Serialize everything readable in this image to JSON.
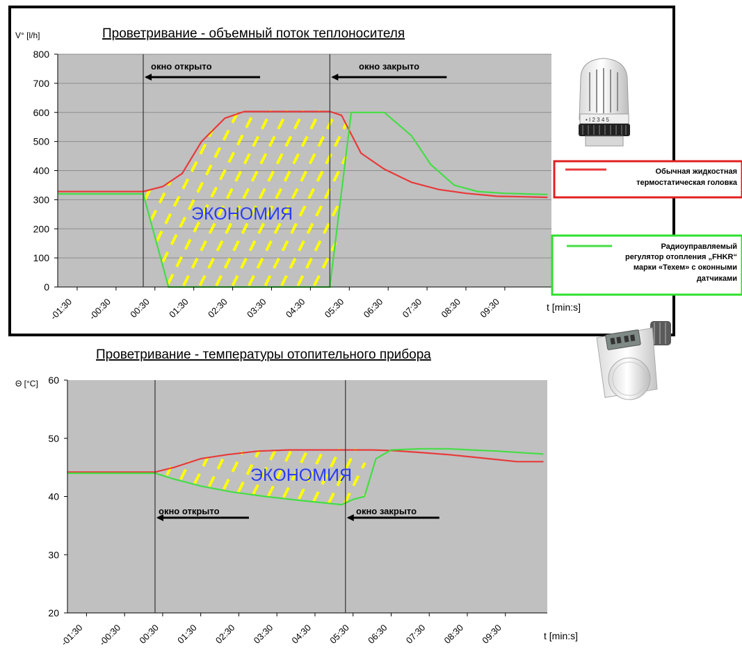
{
  "colors": {
    "plot_bg": "#c0c0c0",
    "conventional": "#e83a3a",
    "radio": "#44dd44",
    "hatch": "#ffff00",
    "savings_text": "#2a3df0"
  },
  "chart_data": [
    {
      "type": "line",
      "title": "Проветривание - объемный поток теплоносителя",
      "ylabel": "V° [l/h]",
      "xlabel": "t [min:s]",
      "ylim": [
        0,
        800
      ],
      "yticks": [
        0,
        100,
        200,
        300,
        400,
        500,
        600,
        700,
        800
      ],
      "categories": [
        "-01:30",
        "-00:30",
        "00:30",
        "01:30",
        "02:30",
        "03:30",
        "04:30",
        "05:30",
        "06:30",
        "07:30",
        "08:30",
        "09:30"
      ],
      "grid": true,
      "series": [
        {
          "name": "Обычная жидкостная термостатическая головка",
          "color": "conventional",
          "points": [
            [
              -2.0,
              328
            ],
            [
              0.2,
              328
            ],
            [
              0.7,
              345
            ],
            [
              1.2,
              390
            ],
            [
              1.7,
              500
            ],
            [
              2.3,
              580
            ],
            [
              2.8,
              603
            ],
            [
              3.5,
              603
            ],
            [
              4.3,
              603
            ],
            [
              5.0,
              603
            ],
            [
              5.3,
              590
            ],
            [
              5.8,
              460
            ],
            [
              6.4,
              405
            ],
            [
              7.1,
              360
            ],
            [
              7.8,
              335
            ],
            [
              8.5,
              322
            ],
            [
              9.3,
              312
            ],
            [
              10.0,
              310
            ],
            [
              10.6,
              308
            ]
          ]
        },
        {
          "name": "Радиоуправляемый регулятор отопления „FHKR“ марки «Техем» с оконными датчиками",
          "color": "radio",
          "points": [
            [
              -2.0,
              320
            ],
            [
              0.2,
              320
            ],
            [
              0.85,
              0
            ],
            [
              5.0,
              0
            ],
            [
              5.55,
              600
            ],
            [
              6.4,
              600
            ],
            [
              7.1,
              520
            ],
            [
              7.6,
              420
            ],
            [
              8.2,
              350
            ],
            [
              8.8,
              328
            ],
            [
              9.5,
              322
            ],
            [
              10.0,
              320
            ],
            [
              10.6,
              318
            ]
          ]
        }
      ],
      "annotations": [
        {
          "text": "окно открыто",
          "x": 0.2,
          "arrow": "left"
        },
        {
          "text": "окно закрыто",
          "x": 5.0,
          "arrow": "left"
        },
        {
          "text": "ЭКОНОМИЯ",
          "area": "savings"
        }
      ],
      "legend": [
        {
          "label": "Обычная жидкостная термостатическая головка",
          "color": "conventional"
        },
        {
          "label": "Радиоуправляемый регулятор отопления „FHKR“ марки «Техем» с оконными датчиками",
          "color": "radio"
        }
      ]
    },
    {
      "type": "line",
      "title": "Проветривание - температуры отопительного прибора",
      "ylabel": "Θ [°C]",
      "xlabel": "t [min:s]",
      "ylim": [
        20,
        60
      ],
      "yticks": [
        20,
        30,
        40,
        50,
        60
      ],
      "categories": [
        "-01:30",
        "-00:30",
        "00:30",
        "01:30",
        "02:30",
        "03:30",
        "04:30",
        "05:30",
        "06:30",
        "07:30",
        "08:30",
        "09:30"
      ],
      "grid": false,
      "series": [
        {
          "name": "Обычная жидкостная термостатическая головка",
          "color": "conventional",
          "points": [
            [
              -2.0,
              44.2
            ],
            [
              0.3,
              44.2
            ],
            [
              0.8,
              45.0
            ],
            [
              1.5,
              46.5
            ],
            [
              2.2,
              47.2
            ],
            [
              3.0,
              47.8
            ],
            [
              3.8,
              48.0
            ],
            [
              4.5,
              48.0
            ],
            [
              5.2,
              48.0
            ],
            [
              6.0,
              48.0
            ],
            [
              6.5,
              47.9
            ],
            [
              7.2,
              47.6
            ],
            [
              8.0,
              47.2
            ],
            [
              8.6,
              46.8
            ],
            [
              9.2,
              46.4
            ],
            [
              9.8,
              46.0
            ],
            [
              10.5,
              46.0
            ]
          ]
        },
        {
          "name": "Радиоуправляемый регулятор отопления „FHKR“ марки «Техем» с оконными датчиками",
          "color": "radio",
          "points": [
            [
              -2.0,
              44.0
            ],
            [
              0.3,
              44.0
            ],
            [
              0.8,
              43.0
            ],
            [
              1.5,
              41.8
            ],
            [
              2.3,
              40.8
            ],
            [
              3.2,
              40.0
            ],
            [
              4.0,
              39.4
            ],
            [
              4.6,
              39.0
            ],
            [
              5.2,
              38.6
            ],
            [
              5.5,
              39.5
            ],
            [
              5.8,
              40.0
            ],
            [
              6.1,
              46.5
            ],
            [
              6.5,
              48.0
            ],
            [
              7.3,
              48.2
            ],
            [
              8.0,
              48.2
            ],
            [
              8.6,
              48.0
            ],
            [
              9.3,
              47.8
            ],
            [
              10.0,
              47.5
            ],
            [
              10.5,
              47.3
            ]
          ]
        }
      ],
      "annotations": [
        {
          "text": "окно открыто",
          "x": 0.3,
          "arrow": "left"
        },
        {
          "text": "окно закрыто",
          "x": 5.3,
          "arrow": "left"
        },
        {
          "text": "ЭКОНОМИЯ",
          "area": "savings"
        }
      ]
    }
  ],
  "labels": {
    "top_title": "Проветривание - объемный поток теплоносителя",
    "top_ylabel": "V° [l/h]",
    "top_xlabel": "t [min:s]",
    "top_open": "окно открыто",
    "top_close": "окно закрыто",
    "top_savings": "ЭКОНОМИЯ",
    "bot_title": "Проветривание - температуры отопительного прибора",
    "bot_ylabel": "Θ [°C]",
    "bot_xlabel": "t [min:s]",
    "bot_open": "окно открыто",
    "bot_close": "окно закрыто",
    "bot_savings": "ЭКОНОМИЯ",
    "legend_red_1": "Обычная жидкостная",
    "legend_red_2": "термостатическая головка",
    "legend_green_1": "Радиоуправляемый",
    "legend_green_2": "регулятор отопления „FHKR“",
    "legend_green_3": "марки «Техем» с оконными",
    "legend_green_4": "датчиками"
  },
  "icons": {
    "top_device": "thermostatic-head-icon",
    "bottom_device": "electronic-radiator-controller-icon"
  }
}
